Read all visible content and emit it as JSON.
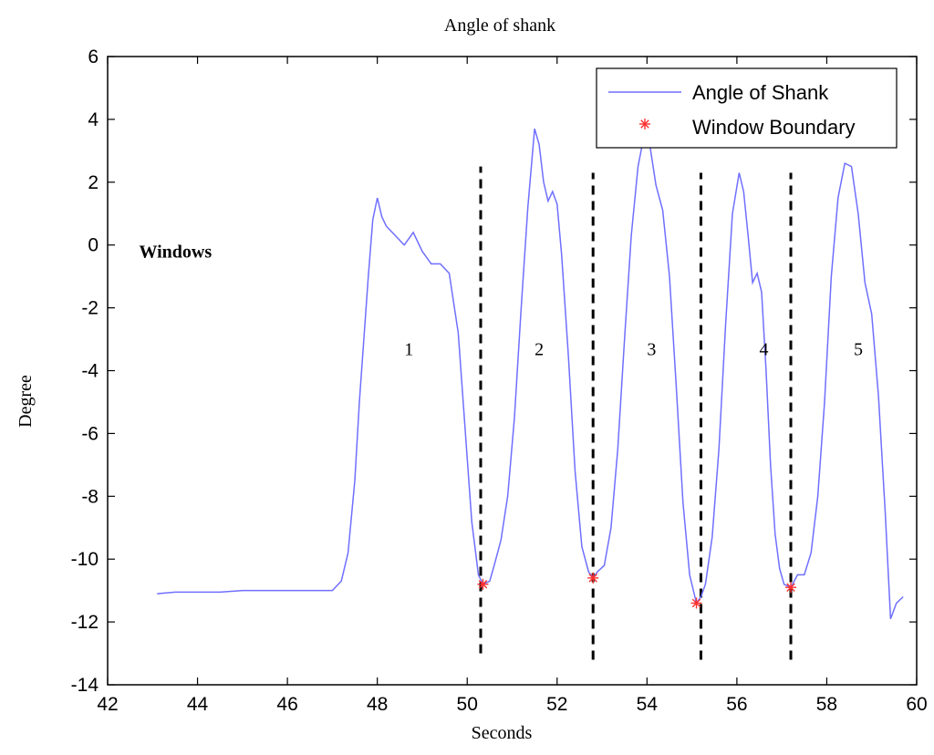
{
  "chart_data": {
    "type": "line",
    "title": "Angle of shank",
    "xlabel": "Seconds",
    "ylabel": "Degree",
    "xlim": [
      42,
      60
    ],
    "ylim": [
      -14,
      6
    ],
    "xticks": [
      42,
      44,
      46,
      48,
      50,
      52,
      54,
      56,
      58,
      60
    ],
    "yticks": [
      -14,
      -12,
      -10,
      -8,
      -6,
      -4,
      -2,
      0,
      2,
      4,
      6
    ],
    "grid": false,
    "legend": {
      "position": "top-right",
      "entries": [
        "Angle of Shank",
        "Window Boundary"
      ]
    },
    "colors": {
      "line": "#6f6fff",
      "marker": "#ff3030",
      "boundary": "#000000"
    },
    "series": [
      {
        "name": "Angle of Shank",
        "x": [
          43.1,
          43.5,
          44.0,
          44.5,
          45.0,
          45.5,
          46.0,
          46.5,
          47.0,
          47.2,
          47.35,
          47.5,
          47.6,
          47.7,
          47.8,
          47.9,
          48.0,
          48.1,
          48.2,
          48.4,
          48.6,
          48.8,
          49.0,
          49.2,
          49.4,
          49.6,
          49.8,
          49.95,
          50.1,
          50.25,
          50.35,
          50.5,
          50.6,
          50.75,
          50.9,
          51.05,
          51.2,
          51.35,
          51.5,
          51.6,
          51.7,
          51.8,
          51.9,
          52.0,
          52.1,
          52.25,
          52.4,
          52.55,
          52.7,
          52.8,
          52.9,
          53.05,
          53.2,
          53.35,
          53.5,
          53.65,
          53.8,
          53.95,
          54.05,
          54.2,
          54.35,
          54.5,
          54.65,
          54.8,
          54.95,
          55.1,
          55.2,
          55.3,
          55.45,
          55.6,
          55.75,
          55.9,
          56.05,
          56.15,
          56.25,
          56.35,
          56.45,
          56.55,
          56.65,
          56.75,
          56.85,
          56.95,
          57.05,
          57.2,
          57.35,
          57.5,
          57.65,
          57.8,
          57.95,
          58.1,
          58.25,
          58.4,
          58.55,
          58.7,
          58.85,
          59.0,
          59.15,
          59.3,
          59.42,
          59.55,
          59.7
        ],
        "y": [
          -11.1,
          -11.05,
          -11.05,
          -11.05,
          -11.0,
          -11.0,
          -11.0,
          -11.0,
          -11.0,
          -10.7,
          -9.8,
          -7.5,
          -5.0,
          -3.0,
          -1.0,
          0.8,
          1.5,
          0.9,
          0.6,
          0.3,
          0.0,
          0.4,
          -0.2,
          -0.6,
          -0.6,
          -0.9,
          -2.8,
          -5.8,
          -8.8,
          -10.5,
          -10.8,
          -10.7,
          -10.2,
          -9.4,
          -8.0,
          -5.5,
          -2.0,
          1.2,
          3.7,
          3.2,
          2.0,
          1.4,
          1.7,
          1.3,
          -0.3,
          -3.5,
          -7.2,
          -9.6,
          -10.4,
          -10.6,
          -10.4,
          -10.2,
          -9.0,
          -6.5,
          -3.0,
          0.3,
          2.5,
          3.6,
          3.3,
          1.9,
          1.1,
          -1.0,
          -4.5,
          -8.2,
          -10.5,
          -11.4,
          -11.2,
          -10.8,
          -9.3,
          -6.5,
          -2.5,
          1.0,
          2.3,
          1.7,
          0.3,
          -1.2,
          -0.9,
          -1.5,
          -4.0,
          -7.0,
          -9.2,
          -10.3,
          -10.8,
          -10.9,
          -10.5,
          -10.5,
          -9.8,
          -8.0,
          -5.0,
          -1.0,
          1.5,
          2.6,
          2.5,
          1.0,
          -1.2,
          -2.2,
          -4.8,
          -8.5,
          -11.9,
          -11.4,
          -11.2
        ]
      },
      {
        "name": "Window Boundary",
        "x": [
          50.35,
          52.8,
          55.1,
          57.2
        ],
        "y": [
          -10.8,
          -10.6,
          -11.4,
          -10.9
        ]
      }
    ],
    "boundary_lines": [
      {
        "x": 50.3,
        "y": [
          -13.0,
          2.5
        ]
      },
      {
        "x": 52.8,
        "y": [
          -13.2,
          2.3
        ]
      },
      {
        "x": 55.2,
        "y": [
          -13.2,
          2.3
        ]
      },
      {
        "x": 57.2,
        "y": [
          -13.2,
          2.3
        ]
      }
    ],
    "annotations": [
      {
        "text": "Windows",
        "x": 42.7,
        "y": -0.4,
        "bold": true
      },
      {
        "text": "1",
        "x": 48.6,
        "y": -3.5
      },
      {
        "text": "2",
        "x": 51.5,
        "y": -3.5
      },
      {
        "text": "3",
        "x": 54.0,
        "y": -3.5
      },
      {
        "text": "4",
        "x": 56.5,
        "y": -3.5
      },
      {
        "text": "5",
        "x": 58.6,
        "y": -3.5
      }
    ]
  }
}
